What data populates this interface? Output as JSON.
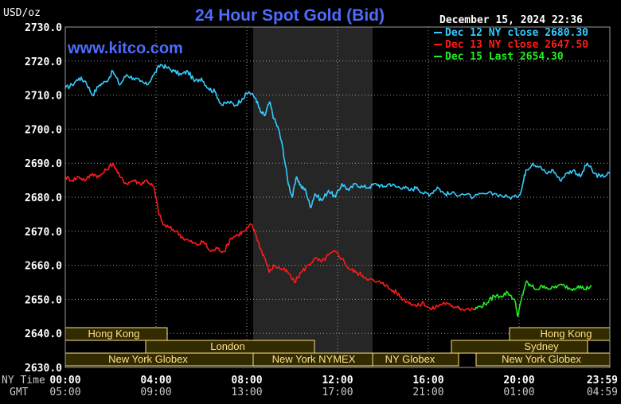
{
  "header": {
    "title": "24 Hour Spot Gold (Bid)",
    "unit_label": "USD/oz",
    "timestamp": "December 15, 2024 22:36",
    "watermark": "www.kitco.com"
  },
  "legend": [
    {
      "label": "Dec 12 NY close 2680.30",
      "color": "#33ccff"
    },
    {
      "label": "Dec 13 NY close 2647.50",
      "color": "#ff1a1a"
    },
    {
      "label": "Dec 15 Last 2654.30",
      "color": "#22ee22"
    }
  ],
  "axis": {
    "y_ticks": [
      "2730.0",
      "2720.0",
      "2710.0",
      "2700.0",
      "2690.0",
      "2680.0",
      "2670.0",
      "2660.0",
      "2650.0",
      "2640.0",
      "2630.0"
    ],
    "row1_label": "NY Time",
    "row2_label": "GMT",
    "ny_ticks": [
      "00:00",
      "04:00",
      "08:00",
      "12:00",
      "16:00",
      "20:00",
      "23:59"
    ],
    "gmt_ticks": [
      "05:00",
      "09:00",
      "13:00",
      "17:00",
      "21:00",
      "01:00",
      "04:59"
    ]
  },
  "sessions": {
    "hong_kong_left": "Hong Kong",
    "london": "London",
    "ny_globex_left": "New York Globex",
    "ny_nymex": "New York NYMEX",
    "ny_globex_mid": "NY Globex",
    "hong_kong_right": "Hong Kong",
    "sydney": "Sydney",
    "ny_globex_right": "New York Globex"
  },
  "colors": {
    "background": "#000000",
    "grid": "#9a9a9a",
    "nymex_shade": "#262626",
    "session_fill": "#332b00",
    "session_text": "#ffe08a",
    "title": "#4d6cff",
    "watermark": "#4d6cff"
  },
  "chart_data": {
    "type": "line",
    "title": "24 Hour Spot Gold (Bid)",
    "ylabel": "USD/oz",
    "xlabel": "NY Time",
    "ylim": [
      2630,
      2730
    ],
    "xlim": [
      0,
      24
    ],
    "grid": true,
    "legend_position": "top-right",
    "series": [
      {
        "name": "Dec 12 NY close 2680.30",
        "color": "#33ccff",
        "x": [
          0,
          0.3,
          0.6,
          0.9,
          1.2,
          1.5,
          1.8,
          2.1,
          2.4,
          2.7,
          3.0,
          3.3,
          3.6,
          3.9,
          4.2,
          4.5,
          4.8,
          5.1,
          5.4,
          5.7,
          6.0,
          6.3,
          6.6,
          6.9,
          7.2,
          7.5,
          7.8,
          8.1,
          8.4,
          8.6,
          8.8,
          9.0,
          9.2,
          9.4,
          9.6,
          9.8,
          10.0,
          10.2,
          10.4,
          10.6,
          10.8,
          11.0,
          11.3,
          11.6,
          11.9,
          12.2,
          12.5,
          12.8,
          13.1,
          13.4,
          13.7,
          14.0,
          14.3,
          14.6,
          14.9,
          15.2,
          15.5,
          15.8,
          16.1,
          16.4,
          16.7,
          17.0,
          17.5,
          18.0,
          18.5,
          19.0,
          19.5,
          19.9,
          20.1,
          20.3,
          20.6,
          20.9,
          21.2,
          21.5,
          21.8,
          22.1,
          22.4,
          22.7,
          23.0,
          23.3,
          23.6,
          23.99
        ],
        "y": [
          2712,
          2713,
          2715,
          2714,
          2710,
          2713,
          2714,
          2717,
          2713,
          2716,
          2715,
          2714,
          2713,
          2716,
          2719,
          2718,
          2717,
          2716,
          2717,
          2714,
          2715,
          2712,
          2711,
          2707,
          2708,
          2707,
          2709,
          2711,
          2709,
          2705,
          2704,
          2708,
          2703,
          2700,
          2694,
          2685,
          2680,
          2686,
          2683,
          2682,
          2677,
          2681,
          2679,
          2682,
          2680,
          2684,
          2682,
          2684,
          2683,
          2683,
          2684,
          2683,
          2684,
          2683,
          2683,
          2682,
          2683,
          2681,
          2681,
          2683,
          2681,
          2681,
          2681,
          2680,
          2681,
          2681,
          2680,
          2680,
          2682,
          2688,
          2690,
          2689,
          2687,
          2688,
          2685,
          2687,
          2688,
          2686,
          2690,
          2687,
          2686,
          2687
        ]
      },
      {
        "name": "Dec 13 NY close 2647.50",
        "color": "#ff1a1a",
        "x": [
          0,
          0.3,
          0.6,
          0.9,
          1.2,
          1.5,
          1.8,
          2.1,
          2.4,
          2.7,
          3.0,
          3.3,
          3.6,
          3.9,
          4.1,
          4.3,
          4.6,
          4.9,
          5.2,
          5.5,
          5.8,
          6.1,
          6.4,
          6.7,
          7.0,
          7.3,
          7.6,
          7.9,
          8.2,
          8.4,
          8.6,
          8.8,
          9.0,
          9.2,
          9.5,
          9.8,
          10.1,
          10.4,
          10.7,
          11.0,
          11.3,
          11.6,
          11.9,
          12.2,
          12.5,
          12.8,
          13.1,
          13.4,
          13.7,
          14.0,
          14.3,
          14.6,
          14.9,
          15.2,
          15.5,
          15.8,
          16.1,
          16.4,
          16.7,
          17.0,
          17.3,
          17.5,
          18.0
        ],
        "y": [
          2686,
          2685,
          2686,
          2685,
          2687,
          2686,
          2688,
          2690,
          2686,
          2684,
          2685,
          2684,
          2685,
          2683,
          2676,
          2672,
          2671,
          2670,
          2668,
          2667,
          2666,
          2667,
          2664,
          2665,
          2664,
          2668,
          2669,
          2670,
          2672,
          2669,
          2665,
          2662,
          2658,
          2660,
          2659,
          2658,
          2655,
          2658,
          2660,
          2662,
          2661,
          2663,
          2664,
          2662,
          2659,
          2658,
          2657,
          2656,
          2655,
          2655,
          2653,
          2652,
          2650,
          2649,
          2648,
          2649,
          2647,
          2648,
          2649,
          2648,
          2648,
          2647,
          2647
        ]
      },
      {
        "name": "Dec 15 Last 2654.30",
        "color": "#22ee22",
        "x": [
          18.0,
          18.3,
          18.6,
          18.9,
          19.2,
          19.5,
          19.8,
          19.95,
          20.1,
          20.3,
          20.5,
          20.8,
          21.1,
          21.4,
          21.7,
          22.0,
          22.3,
          22.6,
          22.9,
          23.2
        ],
        "y": [
          2647,
          2648,
          2649,
          2651,
          2651,
          2652,
          2650,
          2645,
          2650,
          2655,
          2654,
          2653,
          2654,
          2653,
          2654,
          2654,
          2653,
          2654,
          2653,
          2654
        ]
      }
    ]
  }
}
